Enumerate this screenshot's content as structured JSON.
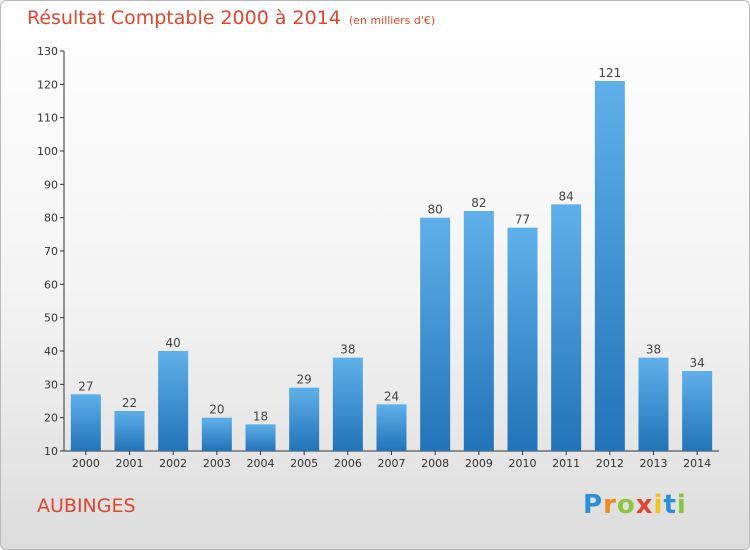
{
  "header": {
    "title": "Résultat Comptable 2000 à 2014",
    "unit": "(en milliers d'€)"
  },
  "footer": {
    "town": "AUBINGES",
    "logo_text": "Proxiti"
  },
  "colors": {
    "title": "#e0462e",
    "bar_top": "#5fb0ea",
    "bar_bottom": "#2273b8"
  },
  "chart_data": {
    "type": "bar",
    "title": "Résultat Comptable 2000 à 2014",
    "subtitle": "(en milliers d'€)",
    "categories": [
      "2000",
      "2001",
      "2002",
      "2003",
      "2004",
      "2005",
      "2006",
      "2007",
      "2008",
      "2009",
      "2010",
      "2011",
      "2012",
      "2013",
      "2014"
    ],
    "values": [
      27,
      22,
      40,
      20,
      18,
      29,
      38,
      24,
      80,
      82,
      77,
      84,
      121,
      38,
      34
    ],
    "ylim": [
      10,
      130
    ],
    "yticks": [
      10,
      20,
      30,
      40,
      50,
      60,
      70,
      80,
      90,
      100,
      110,
      120,
      130
    ],
    "grid": false,
    "legend": "none"
  }
}
